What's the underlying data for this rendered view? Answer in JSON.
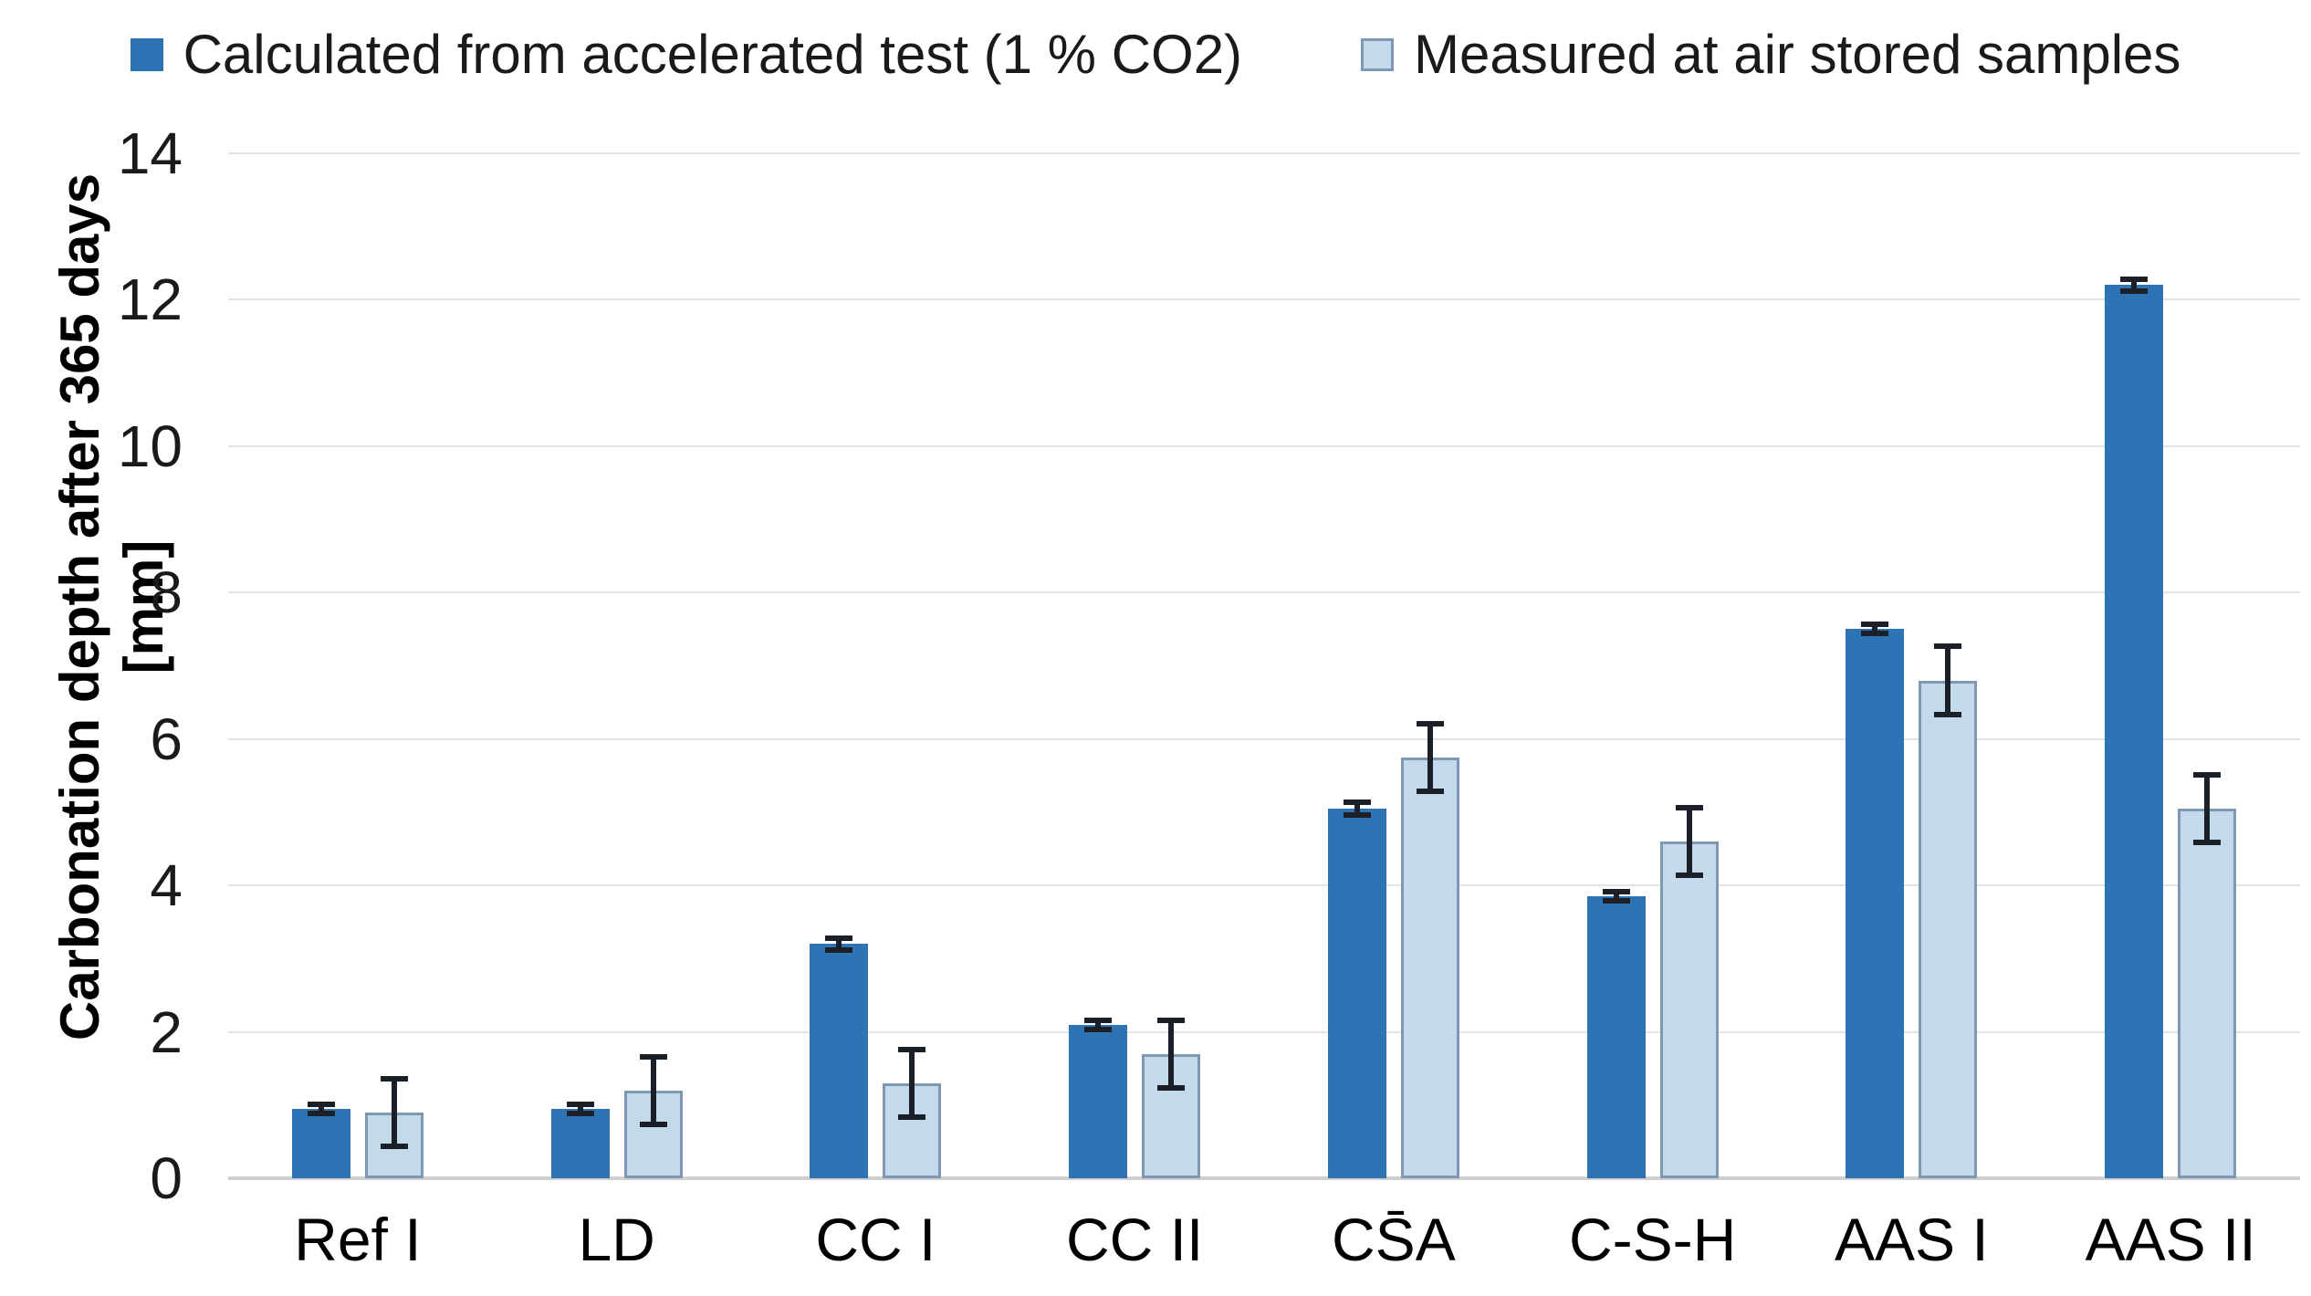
{
  "chart_data": {
    "type": "bar",
    "title": "",
    "categories": [
      "Ref I",
      "LD",
      "CC I",
      "CC II",
      "CS̄A",
      "C-S-H",
      "AAS I",
      "AAS II"
    ],
    "series": [
      {
        "name": "Calculated from accelerated test (1 % CO2)",
        "color": "#2E74B5",
        "values": [
          0.95,
          0.95,
          3.2,
          2.1,
          5.05,
          3.85,
          7.5,
          12.2
        ],
        "errors": [
          0.1,
          0.1,
          0.12,
          0.1,
          0.12,
          0.1,
          0.1,
          0.12
        ]
      },
      {
        "name": "Measured at air stored samples",
        "color": "#C5D9ED",
        "border_color": "#7E98B4",
        "values": [
          0.9,
          1.2,
          1.3,
          1.7,
          5.75,
          4.6,
          6.8,
          5.05
        ],
        "errors": [
          0.5,
          0.5,
          0.5,
          0.5,
          0.5,
          0.5,
          0.5,
          0.5
        ]
      }
    ],
    "xlabel": "",
    "ylabel": "Carbonation depth after 365 days [mm]",
    "ylim": [
      0,
      14
    ],
    "yticks": [
      0,
      2,
      4,
      6,
      8,
      10,
      12,
      14
    ],
    "grid": true,
    "legend_position": "top",
    "error_bar_color": "#1b1f27",
    "gridline_color": "#e4e4e4",
    "axis_line_color": "#cfcfcf",
    "background_color": "#ffffff"
  }
}
